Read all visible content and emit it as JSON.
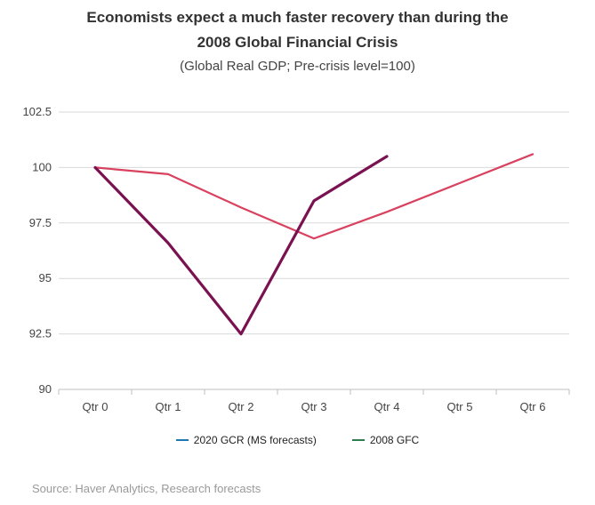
{
  "chart_data": {
    "type": "line",
    "title_line1": "Economists expect a much faster recovery than during the",
    "title_line2": "2008 Global Financial Crisis",
    "subtitle": "(Global Real GDP; Pre-crisis level=100)",
    "categories": [
      "Qtr 0",
      "Qtr 1",
      "Qtr 2",
      "Qtr 3",
      "Qtr 4",
      "Qtr 5",
      "Qtr 6"
    ],
    "yticks": [
      "90",
      "92.5",
      "95",
      "97.5",
      "100",
      "102.5"
    ],
    "ylim": [
      90,
      102.5
    ],
    "series": [
      {
        "name": "2020 GCR (MS forecasts)",
        "legend_color": "#1f77b4",
        "line_color": "#7a1150",
        "values": [
          100,
          96.6,
          92.5,
          98.5,
          100.5,
          null,
          null
        ]
      },
      {
        "name": "2008 GFC",
        "legend_color": "#2e7d4f",
        "line_color": "#d9415f",
        "values": [
          100,
          99.7,
          98.2,
          96.8,
          98.0,
          99.3,
          100.6
        ]
      }
    ],
    "source": "Source: Haver Analytics, Research forecasts"
  }
}
